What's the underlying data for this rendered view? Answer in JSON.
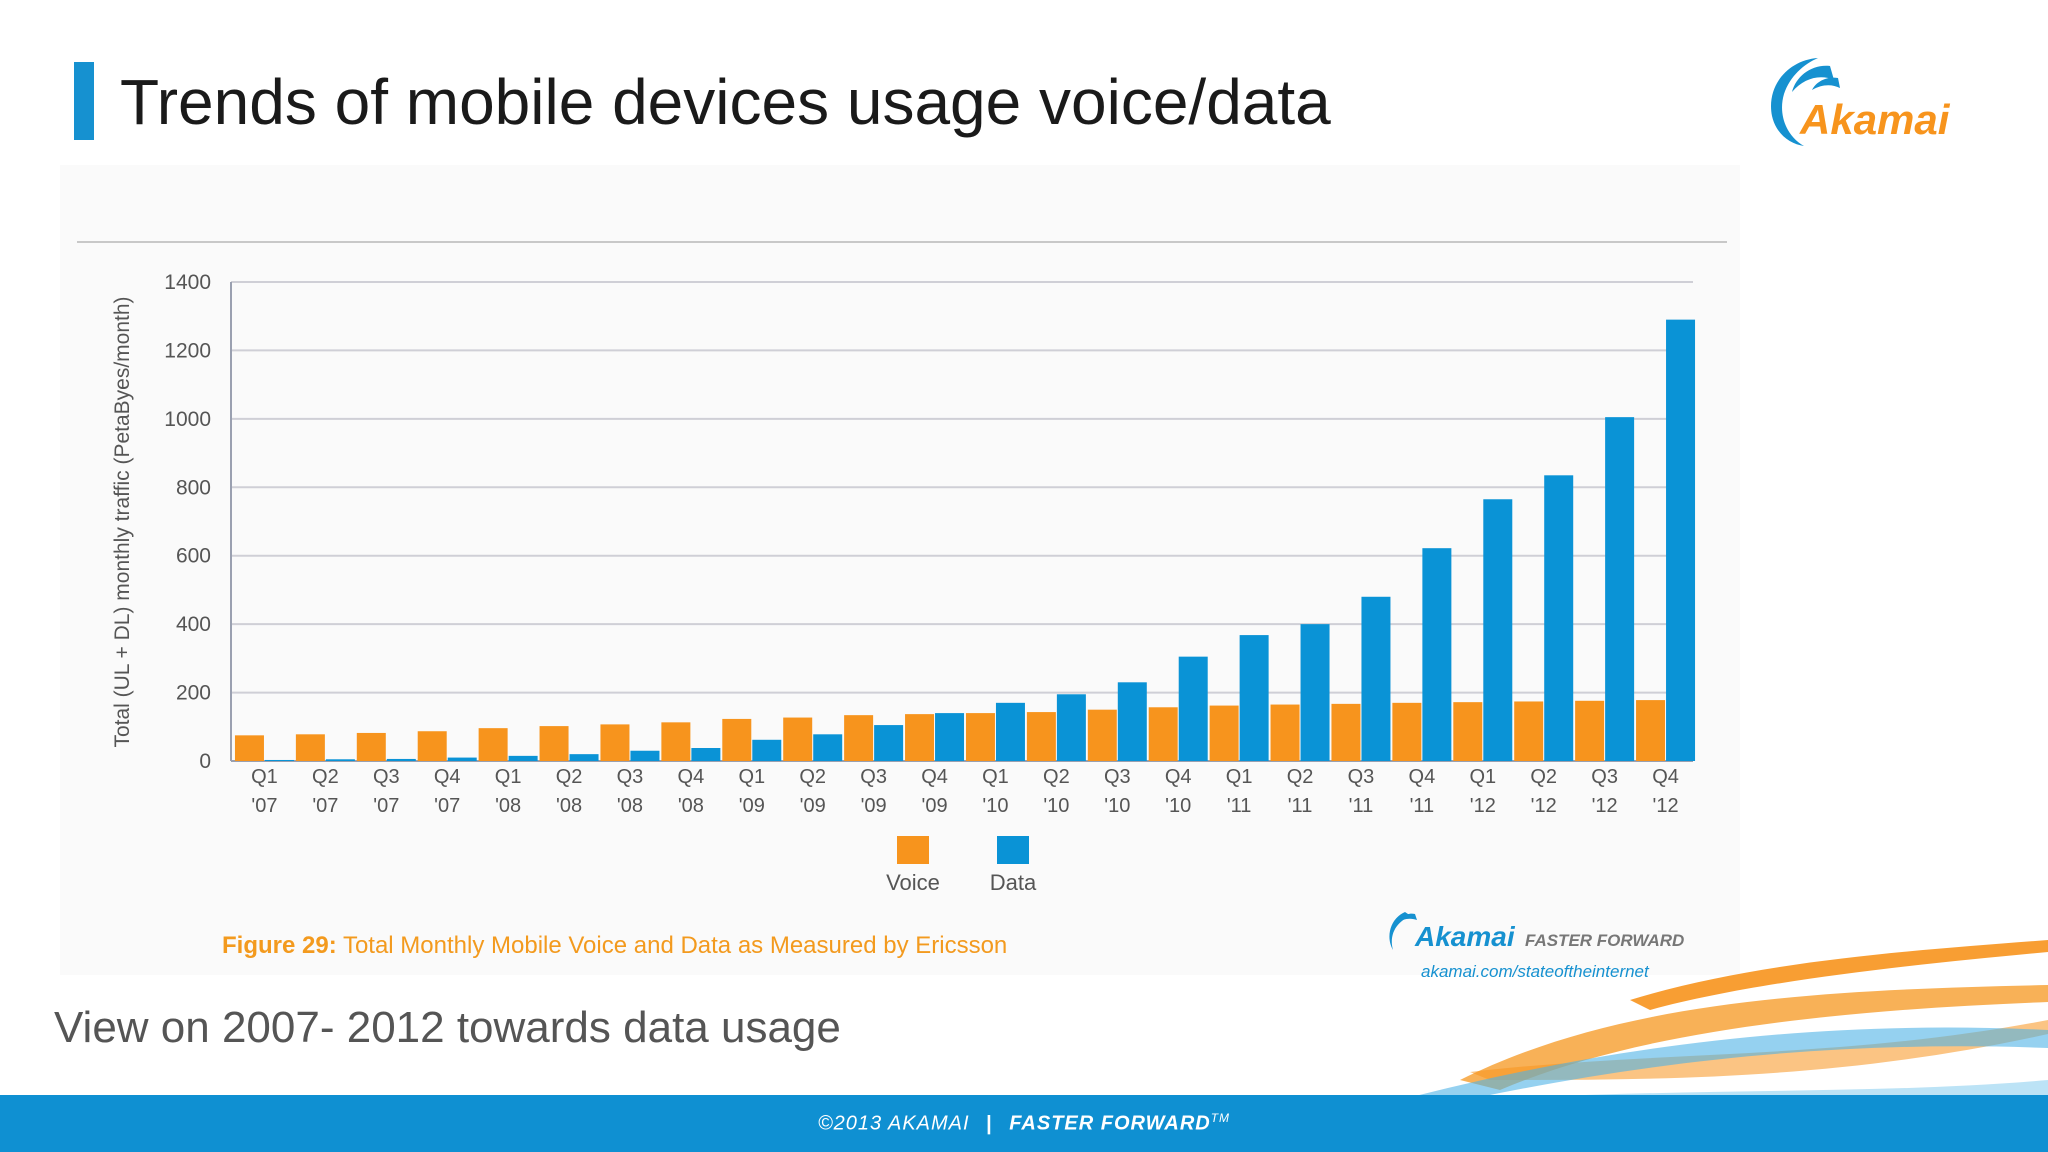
{
  "slide": {
    "title": "Trends of mobile devices usage voice/data",
    "subtitle": "View on 2007- 2012 towards data usage",
    "logo_text": "Akamai",
    "footer": {
      "copyright": "©2013 AKAMAI",
      "separator": "|",
      "tagline": "FASTER FORWARD",
      "tm": "TM"
    },
    "brand_block": {
      "name": "Akamai",
      "tag": "FASTER FORWARD",
      "url": "akamai.com/stateoftheinternet"
    },
    "caption": {
      "label": "Figure 29:",
      "text": "Total Monthly Mobile Voice and Data as Measured by Ericsson"
    }
  },
  "colors": {
    "voice": "#f7941d",
    "data": "#0a93d6",
    "accent": "#1691d0",
    "grid": "#cfcfd6",
    "tick_text": "#555555"
  },
  "chart_data": {
    "type": "bar",
    "title": "",
    "ylabel": "Total (UL + DL) monthly traffic (PetaByes/month)",
    "xlabel": "",
    "ylim": [
      0,
      1400
    ],
    "yticks": [
      0,
      200,
      400,
      600,
      800,
      1000,
      1200,
      1400
    ],
    "grid": true,
    "legend_position": "bottom-center",
    "categories": [
      [
        "Q1",
        "'07"
      ],
      [
        "Q2",
        "'07"
      ],
      [
        "Q3",
        "'07"
      ],
      [
        "Q4",
        "'07"
      ],
      [
        "Q1",
        "'08"
      ],
      [
        "Q2",
        "'08"
      ],
      [
        "Q3",
        "'08"
      ],
      [
        "Q4",
        "'08"
      ],
      [
        "Q1",
        "'09"
      ],
      [
        "Q2",
        "'09"
      ],
      [
        "Q3",
        "'09"
      ],
      [
        "Q4",
        "'09"
      ],
      [
        "Q1",
        "'10"
      ],
      [
        "Q2",
        "'10"
      ],
      [
        "Q3",
        "'10"
      ],
      [
        "Q4",
        "'10"
      ],
      [
        "Q1",
        "'11"
      ],
      [
        "Q2",
        "'11"
      ],
      [
        "Q3",
        "'11"
      ],
      [
        "Q4",
        "'11"
      ],
      [
        "Q1",
        "'12"
      ],
      [
        "Q2",
        "'12"
      ],
      [
        "Q3",
        "'12"
      ],
      [
        "Q4",
        "'12"
      ]
    ],
    "series": [
      {
        "name": "Voice",
        "values": [
          75,
          78,
          82,
          87,
          96,
          102,
          107,
          113,
          123,
          127,
          134,
          137,
          140,
          143,
          150,
          157,
          162,
          165,
          167,
          170,
          172,
          174,
          176,
          178
        ]
      },
      {
        "name": "Data",
        "values": [
          3,
          5,
          6,
          10,
          15,
          20,
          30,
          38,
          62,
          78,
          105,
          140,
          170,
          195,
          230,
          305,
          368,
          400,
          480,
          622,
          765,
          835,
          1005,
          1290
        ]
      }
    ]
  }
}
